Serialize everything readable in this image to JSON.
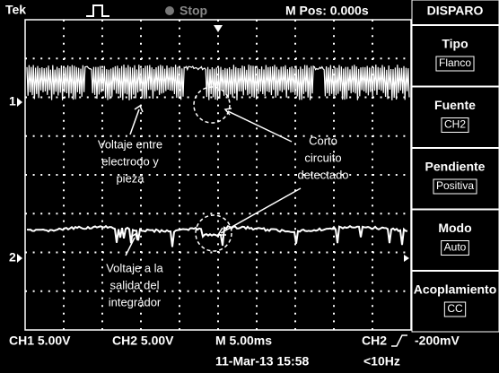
{
  "header": {
    "brand": "Tek",
    "state": "Stop",
    "position": "M Pos: 0.000s"
  },
  "menu": {
    "title": "DISPARO",
    "items": [
      {
        "label": "Tipo",
        "value": "Flanco"
      },
      {
        "label": "Fuente",
        "value": "CH2"
      },
      {
        "label": "Pendiente",
        "value": "Positiva"
      },
      {
        "label": "Modo",
        "value": "Auto"
      },
      {
        "label": "Acoplamiento",
        "value": "CC"
      }
    ]
  },
  "channels": {
    "ch1_marker": "1",
    "ch2_marker": "2"
  },
  "annotations": [
    {
      "lines": [
        "Voltaje entre",
        "electrodo y",
        "pieza"
      ]
    },
    {
      "lines": [
        "Corto",
        "circuito",
        "detectado"
      ]
    },
    {
      "lines": [
        "Voltaje a la",
        "salida del",
        "integrador"
      ]
    }
  ],
  "footer": {
    "ch1": "CH1  5.00V",
    "ch2": "CH2  5.00V",
    "timebase": "M 5.00ms",
    "trigger_source": "CH2",
    "trigger_level": "-200mV",
    "date": "11-Mar-13 15:58",
    "frequency": "<10Hz"
  }
}
